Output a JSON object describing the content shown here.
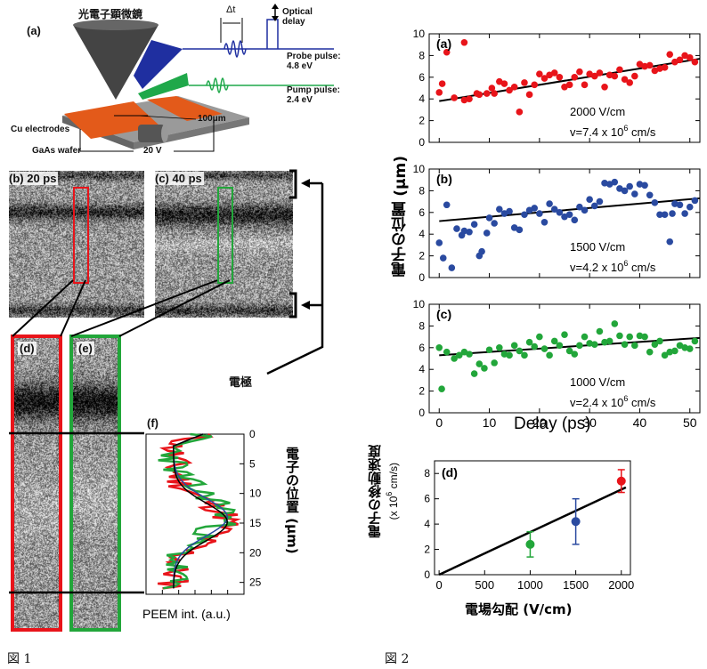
{
  "figure1": {
    "panel_a": {
      "label": "(a)",
      "microscope": "光電子顕微鏡",
      "delta_t": "Δt",
      "optical_delay": "Optical delay",
      "probe_label": "Probe pulse:",
      "probe_energy": "4.8 eV",
      "pump_label": "Pump pulse:",
      "pump_energy": "2.4 eV",
      "scale": "100μm",
      "cu_electrodes": "Cu electrodes",
      "wafer": "GaAs wafer",
      "voltage": "20 V"
    },
    "panel_b_label": "(b) 20 ps",
    "panel_c_label": "(c) 40 ps",
    "panel_d_label": "(d)",
    "panel_e_label": "(e)",
    "panel_f": {
      "label": "(f)",
      "xlabel": "PEEM int. (a.u.)",
      "ylabel": "電子の位置 (μm)",
      "yticks": [
        "0",
        "5",
        "10",
        "15",
        "20",
        "25"
      ]
    },
    "electrode_label": "電極",
    "caption": "図 1",
    "colors": {
      "red": "#e8141a",
      "green": "#22a63a",
      "blue": "#2a4aa0"
    }
  },
  "chart_data": [
    {
      "type": "scatter",
      "panel": "(a)",
      "annotation": "2000 V/cm",
      "velocity_label": "v=7.4 x 10",
      "velocity_exp": "6",
      "velocity_unit": " cm/s",
      "ylim": [
        0,
        10
      ],
      "xlim": [
        0,
        52
      ],
      "fit": [
        [
          0,
          3.8
        ],
        [
          52,
          7.7
        ]
      ],
      "color": "#e8141a",
      "points": [
        [
          0,
          4.6
        ],
        [
          0.6,
          5.4
        ],
        [
          1.5,
          8.3
        ],
        [
          5,
          9.2
        ],
        [
          3,
          4.1
        ],
        [
          5,
          3.9
        ],
        [
          6,
          4.0
        ],
        [
          7.5,
          4.5
        ],
        [
          8,
          4.4
        ],
        [
          9.5,
          4.5
        ],
        [
          10.5,
          5.0
        ],
        [
          11,
          4.5
        ],
        [
          12,
          5.6
        ],
        [
          13,
          5.4
        ],
        [
          14,
          4.8
        ],
        [
          15,
          5.1
        ],
        [
          16,
          2.8
        ],
        [
          17,
          5.5
        ],
        [
          18,
          4.4
        ],
        [
          19,
          5.3
        ],
        [
          20,
          6.3
        ],
        [
          21,
          5.9
        ],
        [
          22,
          6.2
        ],
        [
          23,
          6.4
        ],
        [
          24,
          6.0
        ],
        [
          25,
          5.1
        ],
        [
          26,
          5.3
        ],
        [
          27,
          6.0
        ],
        [
          28,
          6.5
        ],
        [
          29,
          5.3
        ],
        [
          30,
          6.3
        ],
        [
          31,
          6.1
        ],
        [
          32,
          6.4
        ],
        [
          33,
          5.1
        ],
        [
          34,
          6.2
        ],
        [
          35,
          6.1
        ],
        [
          36,
          6.7
        ],
        [
          37,
          5.8
        ],
        [
          38,
          5.5
        ],
        [
          39,
          6.1
        ],
        [
          40,
          7.2
        ],
        [
          41,
          7.0
        ],
        [
          42,
          7.1
        ],
        [
          43,
          6.6
        ],
        [
          44,
          6.8
        ],
        [
          45,
          6.9
        ],
        [
          46,
          8.1
        ],
        [
          47,
          7.4
        ],
        [
          48,
          7.6
        ],
        [
          49,
          8.0
        ],
        [
          50,
          7.8
        ],
        [
          51,
          7.4
        ]
      ]
    },
    {
      "type": "scatter",
      "panel": "(b)",
      "annotation": "1500 V/cm",
      "velocity_label": "v=4.2 x 10",
      "velocity_exp": "6",
      "velocity_unit": " cm/s",
      "ylim": [
        0,
        10
      ],
      "xlim": [
        0,
        52
      ],
      "fit": [
        [
          0,
          5.2
        ],
        [
          52,
          7.3
        ]
      ],
      "color": "#2a4aa0",
      "points": [
        [
          0,
          3.2
        ],
        [
          0.8,
          1.8
        ],
        [
          1.5,
          6.7
        ],
        [
          2.5,
          0.9
        ],
        [
          3.5,
          4.5
        ],
        [
          4.5,
          3.9
        ],
        [
          5,
          4.3
        ],
        [
          6,
          4.2
        ],
        [
          7,
          4.9
        ],
        [
          8,
          2.0
        ],
        [
          8.5,
          2.4
        ],
        [
          9.5,
          4.1
        ],
        [
          10,
          5.5
        ],
        [
          11,
          5.0
        ],
        [
          12,
          6.3
        ],
        [
          13,
          5.9
        ],
        [
          14,
          6.1
        ],
        [
          15,
          4.6
        ],
        [
          16,
          4.4
        ],
        [
          17,
          5.8
        ],
        [
          18,
          6.2
        ],
        [
          19,
          6.4
        ],
        [
          20,
          5.9
        ],
        [
          21,
          5.1
        ],
        [
          22,
          6.8
        ],
        [
          23,
          6.3
        ],
        [
          24,
          6.0
        ],
        [
          25,
          5.6
        ],
        [
          26,
          5.8
        ],
        [
          27,
          5.3
        ],
        [
          28,
          6.5
        ],
        [
          29,
          6.2
        ],
        [
          30,
          7.2
        ],
        [
          31,
          6.6
        ],
        [
          32,
          7.0
        ],
        [
          33,
          8.7
        ],
        [
          34,
          8.6
        ],
        [
          35,
          8.8
        ],
        [
          36,
          8.2
        ],
        [
          37,
          8.0
        ],
        [
          38,
          8.4
        ],
        [
          39,
          7.7
        ],
        [
          40,
          8.6
        ],
        [
          41,
          8.5
        ],
        [
          42,
          7.6
        ],
        [
          43,
          6.9
        ],
        [
          44,
          5.8
        ],
        [
          45,
          5.8
        ],
        [
          46,
          3.3
        ],
        [
          46.5,
          5.9
        ],
        [
          47,
          6.8
        ],
        [
          48,
          6.7
        ],
        [
          49,
          5.9
        ],
        [
          50,
          6.5
        ],
        [
          51,
          7.1
        ]
      ]
    },
    {
      "type": "scatter",
      "panel": "(c)",
      "annotation": "1000 V/cm",
      "velocity_label": "v=2.4 x 10",
      "velocity_exp": "6",
      "velocity_unit": " cm/s",
      "ylim": [
        0,
        10
      ],
      "xlim": [
        0,
        52
      ],
      "fit": [
        [
          0,
          5.3
        ],
        [
          52,
          6.9
        ]
      ],
      "color": "#22a63a",
      "points": [
        [
          0,
          6.0
        ],
        [
          0.5,
          2.2
        ],
        [
          1.5,
          5.6
        ],
        [
          3,
          5.0
        ],
        [
          4,
          5.3
        ],
        [
          5,
          5.6
        ],
        [
          6,
          5.4
        ],
        [
          7,
          3.6
        ],
        [
          8,
          4.5
        ],
        [
          9,
          4.1
        ],
        [
          10,
          5.8
        ],
        [
          11,
          4.6
        ],
        [
          12,
          6.0
        ],
        [
          13,
          5.4
        ],
        [
          14,
          5.3
        ],
        [
          15,
          6.2
        ],
        [
          16,
          5.7
        ],
        [
          17,
          5.3
        ],
        [
          18,
          6.5
        ],
        [
          19,
          6.1
        ],
        [
          20,
          7.0
        ],
        [
          21,
          5.9
        ],
        [
          22,
          5.3
        ],
        [
          23,
          6.6
        ],
        [
          24,
          6.2
        ],
        [
          25,
          7.2
        ],
        [
          26,
          5.7
        ],
        [
          27,
          5.4
        ],
        [
          28,
          6.2
        ],
        [
          29,
          7.0
        ],
        [
          30,
          6.4
        ],
        [
          31,
          6.3
        ],
        [
          32,
          7.5
        ],
        [
          33,
          6.5
        ],
        [
          34,
          6.6
        ],
        [
          35,
          8.2
        ],
        [
          36,
          7.1
        ],
        [
          37,
          6.3
        ],
        [
          38,
          7.0
        ],
        [
          39,
          6.2
        ],
        [
          40,
          7.1
        ],
        [
          41,
          7.0
        ],
        [
          42,
          5.6
        ],
        [
          43,
          6.3
        ],
        [
          44,
          6.6
        ],
        [
          45,
          5.3
        ],
        [
          46,
          5.6
        ],
        [
          47,
          5.7
        ],
        [
          48,
          6.2
        ],
        [
          49,
          6.0
        ],
        [
          50,
          5.9
        ],
        [
          51,
          6.6
        ]
      ]
    },
    {
      "type": "scatter",
      "panel": "(d)",
      "xlabel": "電場勾配 (V/cm)",
      "ylabel": "電子の移動速度",
      "yunit_label": "(x 10",
      "yunit_exp": "6",
      "yunit_tail": " cm/s)",
      "xlim": [
        -50,
        2100
      ],
      "ylim": [
        0,
        9
      ],
      "xticks": [
        0,
        500,
        1000,
        1500,
        2000
      ],
      "yticks": [
        0,
        2,
        4,
        6,
        8
      ],
      "fit": [
        [
          0,
          0
        ],
        [
          2050,
          6.9
        ]
      ],
      "points": [
        {
          "x": 1000,
          "y": 2.4,
          "err": 1.0,
          "color": "#22a63a"
        },
        {
          "x": 1500,
          "y": 4.2,
          "err": 1.8,
          "color": "#2a4aa0"
        },
        {
          "x": 2000,
          "y": 7.4,
          "err": 0.9,
          "color": "#e8141a"
        }
      ]
    }
  ],
  "figure2": {
    "xlabel": "Delay (ps)",
    "ylabel": "電子の位置 (μm)",
    "xticks": [
      "0",
      "10",
      "20",
      "30",
      "40",
      "50"
    ],
    "yticks": [
      "0",
      "2",
      "4",
      "6",
      "8",
      "10"
    ],
    "caption": "図 2"
  }
}
